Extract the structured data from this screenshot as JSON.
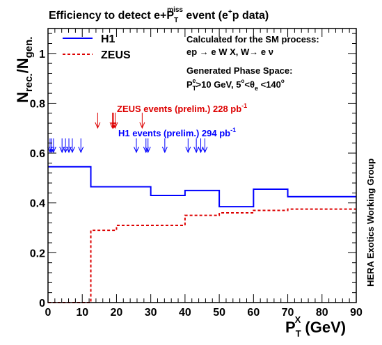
{
  "chart_data": {
    "type": "line",
    "title_main": "Efficiency to detect e+P",
    "title_sup": "miss",
    "title_sub": "T",
    "title_tail": " event (e",
    "title_tail_sup": "+",
    "title_end": "p data)",
    "xlabel_main": "P",
    "xlabel_sup": "X",
    "xlabel_sub": "T",
    "xlabel_unit": " (GeV)",
    "ylabel_main": "N",
    "ylabel_sub1": "rec.",
    "ylabel_mid": "/N",
    "ylabel_sub2": "gen.",
    "xlim": [
      0,
      90
    ],
    "ylim": [
      0,
      1.1
    ],
    "x_ticks": [
      0,
      10,
      20,
      30,
      40,
      50,
      60,
      70,
      80,
      90
    ],
    "x_tick_labels": [
      "0",
      "10",
      "20",
      "30",
      "40",
      "50",
      "60",
      "70",
      "80",
      "90"
    ],
    "y_ticks": [
      0,
      0.2,
      0.4,
      0.6,
      0.8,
      1
    ],
    "y_tick_labels": [
      "0",
      "0.2",
      "0.4",
      "0.6",
      "0.8",
      "1"
    ],
    "grid": false,
    "legend_position": "top-left",
    "series": [
      {
        "name": "H1",
        "color": "#0000ff",
        "style": "solid",
        "step_edges": [
          0,
          12.5,
          25,
          30,
          40,
          50,
          60,
          70,
          90
        ],
        "values": [
          0.545,
          0.465,
          0.465,
          0.43,
          0.45,
          0.385,
          0.455,
          0.425
        ]
      },
      {
        "name": "ZEUS",
        "color": "#dd0000",
        "style": "dashed",
        "step_edges": [
          0,
          12.5,
          20,
          30,
          40,
          50,
          60,
          70,
          90
        ],
        "values": [
          0.0,
          0.29,
          0.31,
          0.31,
          0.35,
          0.36,
          0.37,
          0.375
        ]
      }
    ],
    "annotations": {
      "process_line1": "Calculated for the SM process:",
      "process_line2": "ep → e W X, W→ e ν",
      "phase_line1": "Generated Phase Space:",
      "phase_p": "P",
      "phase_p_sup": "e",
      "phase_p_sub": "T",
      "phase_rest1": ">10 GeV, 5",
      "phase_deg1": "o",
      "phase_lt": "<θ",
      "phase_theta_sub": "e",
      "phase_rest2": " <140",
      "phase_deg2": "o",
      "zeus_events_label": "ZEUS events (prelim.) 228 pb",
      "zeus_events_sup": "-1",
      "h1_events_label": "H1 events (prelim.) 294 pb",
      "h1_events_sup": "-1",
      "side_label": "HERA  Exotics Working Group"
    },
    "zeus_event_arrows_x": [
      14.5,
      18.8,
      19.2,
      19.6,
      27.5
    ],
    "h1_event_arrows_x": [
      0.6,
      1.1,
      1.6,
      4.1,
      5.1,
      6.1,
      7.1,
      9.6,
      25.8,
      28.6,
      29.2,
      34.1,
      40.9,
      43.3,
      44.6,
      45.8
    ]
  }
}
